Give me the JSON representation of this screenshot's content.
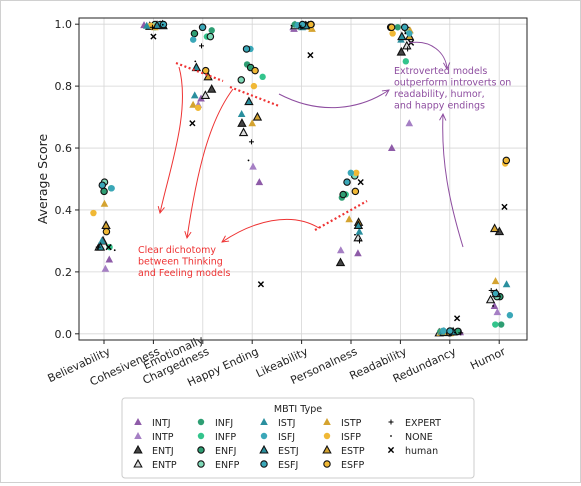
{
  "chart_data": {
    "type": "scatter",
    "ylabel": "Average Score",
    "xlabel": "",
    "ylim": [
      -0.02,
      1.02
    ],
    "yticks": [
      "0.0",
      "0.2",
      "0.4",
      "0.6",
      "0.8",
      "1.0"
    ],
    "grid": true,
    "categories": [
      "Believability",
      "Cohesiveness",
      "Emotionally\nChargedness",
      "Happy Ending",
      "Likeability",
      "Personalness",
      "Readability",
      "Redundancy",
      "Humor"
    ],
    "legend": {
      "title": "MBTI Type",
      "placement": "bottom",
      "entries": [
        {
          "name": "INTJ",
          "color": "#8e5ba8",
          "marker": "triangle"
        },
        {
          "name": "INTP",
          "color": "#a57fc4",
          "marker": "triangle"
        },
        {
          "name": "ENTJ",
          "color": "#444444",
          "marker": "triangle-outlined"
        },
        {
          "name": "ENTP",
          "color": "#dddddd",
          "marker": "triangle-outlined"
        },
        {
          "name": "INFJ",
          "color": "#2e9e73",
          "marker": "circle"
        },
        {
          "name": "INFP",
          "color": "#33c48c",
          "marker": "circle"
        },
        {
          "name": "ENFJ",
          "color": "#2e9e73",
          "marker": "circle-outlined"
        },
        {
          "name": "ENFP",
          "color": "#7fd9b8",
          "marker": "circle-outlined"
        },
        {
          "name": "ISTP",
          "color": "#d4a330",
          "marker": "triangle"
        },
        {
          "name": "ISFP",
          "color": "#f0b835",
          "marker": "circle"
        },
        {
          "name": "ESTP",
          "color": "#d4a330",
          "marker": "triangle-outlined"
        },
        {
          "name": "ESFP",
          "color": "#f0b835",
          "marker": "circle-outlined"
        },
        {
          "name": "ISTJ",
          "color": "#2a8f9e",
          "marker": "triangle"
        },
        {
          "name": "ISFJ",
          "color": "#3aa7b8",
          "marker": "circle"
        },
        {
          "name": "ESTJ",
          "color": "#2a8f9e",
          "marker": "triangle-outlined"
        },
        {
          "name": "ESFJ",
          "color": "#3aa7b8",
          "marker": "circle-outlined"
        },
        {
          "name": "EXPERT",
          "color": "#000000",
          "marker": "plus"
        },
        {
          "name": "NONE",
          "color": "#000000",
          "marker": "dot"
        },
        {
          "name": "human",
          "color": "#000000",
          "marker": "x"
        }
      ]
    },
    "series": [
      {
        "name": "INTJ",
        "values": [
          0.24,
          0.997,
          0.76,
          0.49,
          0.985,
          0.26,
          0.6,
          0.005,
          0.09
        ]
      },
      {
        "name": "INTP",
        "values": [
          0.21,
          0.995,
          0.74,
          0.54,
          0.99,
          0.27,
          0.68,
          0.004,
          0.07
        ]
      },
      {
        "name": "ENTJ",
        "values": [
          0.3,
          0.993,
          0.79,
          0.68,
          0.995,
          0.23,
          0.91,
          0.005,
          0.33
        ]
      },
      {
        "name": "ENTP",
        "values": [
          0.28,
          0.995,
          0.77,
          0.65,
          0.995,
          0.31,
          0.93,
          0.003,
          0.11
        ]
      },
      {
        "name": "INFJ",
        "values": [
          0.47,
          0.999,
          0.98,
          0.87,
          0.999,
          0.44,
          0.99,
          0.007,
          0.03
        ]
      },
      {
        "name": "INFP",
        "values": [
          0.28,
          0.99,
          0.96,
          0.83,
          0.995,
          0.45,
          0.88,
          0.01,
          0.03
        ]
      },
      {
        "name": "ENFJ",
        "values": [
          0.46,
          0.998,
          0.97,
          0.86,
          0.999,
          0.45,
          0.99,
          0.008,
          0.12
        ]
      },
      {
        "name": "ENFP",
        "values": [
          0.49,
          0.999,
          0.96,
          0.82,
          0.997,
          0.51,
          0.98,
          0.006,
          0.12
        ]
      },
      {
        "name": "ISTP",
        "values": [
          0.42,
          0.99,
          0.74,
          0.68,
          0.985,
          0.37,
          0.98,
          0.003,
          0.17
        ]
      },
      {
        "name": "ISFP",
        "values": [
          0.39,
          0.995,
          0.73,
          0.8,
          0.99,
          0.52,
          0.97,
          0.002,
          0.55
        ]
      },
      {
        "name": "ESTP",
        "values": [
          0.35,
          0.998,
          0.83,
          0.7,
          0.995,
          0.36,
          0.96,
          0.004,
          0.34
        ]
      },
      {
        "name": "ESFP",
        "values": [
          0.33,
          0.999,
          0.85,
          0.85,
          0.999,
          0.46,
          0.99,
          0.003,
          0.56
        ]
      },
      {
        "name": "ISTJ",
        "values": [
          0.3,
          0.995,
          0.77,
          0.71,
          0.99,
          0.33,
          0.95,
          0.007,
          0.16
        ]
      },
      {
        "name": "ISFJ",
        "values": [
          0.47,
          0.997,
          0.95,
          0.92,
          0.997,
          0.52,
          0.97,
          0.01,
          0.06
        ]
      },
      {
        "name": "ESTJ",
        "values": [
          0.28,
          0.996,
          0.86,
          0.75,
          0.995,
          0.35,
          0.96,
          0.006,
          0.13
        ]
      },
      {
        "name": "ESFJ",
        "values": [
          0.48,
          0.999,
          0.99,
          0.92,
          0.999,
          0.49,
          0.99,
          0.009,
          0.13
        ]
      },
      {
        "name": "EXPERT",
        "values": [
          0.28,
          0.99,
          0.93,
          0.62,
          0.99,
          0.3,
          0.92,
          0.003,
          0.14
        ]
      },
      {
        "name": "NONE",
        "values": [
          0.27,
          0.998,
          0.88,
          0.56,
          0.995,
          0.32,
          0.97,
          0.004,
          0.09
        ]
      },
      {
        "name": "human",
        "values": [
          0.28,
          0.96,
          0.68,
          0.16,
          0.9,
          0.49,
          0.94,
          0.05,
          0.41
        ]
      }
    ],
    "annotations": [
      {
        "text": "Extroverted models\noutperform introverts on\nreadability, humor,\nand happy endings",
        "color": "#8e4ea0",
        "anchor_category": "Readability",
        "anchor_y": 0.78
      },
      {
        "text": "Clear dichotomy\nbetween Thinking\nand Feeling models",
        "color": "#ee3333",
        "anchor_category": "Cohesiveness",
        "anchor_y": 0.28
      }
    ]
  }
}
